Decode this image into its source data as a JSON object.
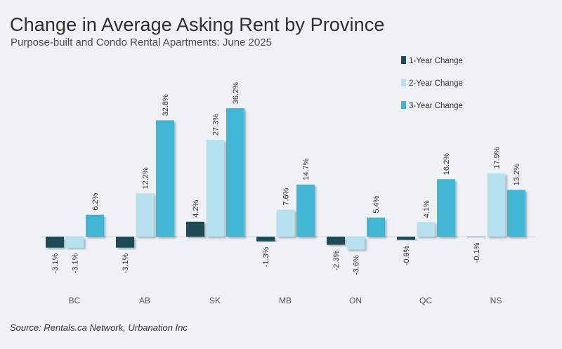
{
  "title": "Change in Average Asking Rent by Province",
  "subtitle": "Purpose-built and Condo Rental Apartments: June 2025",
  "source": "Source: Rentals.ca Network, Urbanation Inc",
  "colors": {
    "series": [
      "#1d4b57",
      "#b6e1ee",
      "#3fb5d4"
    ],
    "baseline": "#cfd5dc",
    "background": "#eef2f7"
  },
  "chart_data": {
    "type": "bar",
    "categories": [
      "BC",
      "AB",
      "SK",
      "MB",
      "ON",
      "QC",
      "NS"
    ],
    "series": [
      {
        "name": "1-Year Change",
        "values": [
          -3.1,
          -3.1,
          4.2,
          -1.3,
          -2.3,
          -0.9,
          -0.1
        ]
      },
      {
        "name": "2-Year Change",
        "values": [
          -3.1,
          12.2,
          27.3,
          7.6,
          -3.6,
          4.1,
          17.9
        ]
      },
      {
        "name": "3-Year Change",
        "values": [
          6.2,
          32.8,
          36.2,
          14.7,
          5.4,
          16.2,
          13.2
        ]
      }
    ],
    "value_labels": [
      [
        "-3.1%",
        "-3.1%",
        "4.2%",
        "-1.3%",
        "-2.3%",
        "-0.9%",
        "-0.1%"
      ],
      [
        "-3.1%",
        "12.2%",
        "27.3%",
        "7.6%",
        "-3.6%",
        "4.1%",
        "17.9%"
      ],
      [
        "6.2%",
        "32.8%",
        "36.2%",
        "14.7%",
        "5.4%",
        "16.2%",
        "13.2%"
      ]
    ],
    "legend_position": "top-right",
    "grid": false
  }
}
